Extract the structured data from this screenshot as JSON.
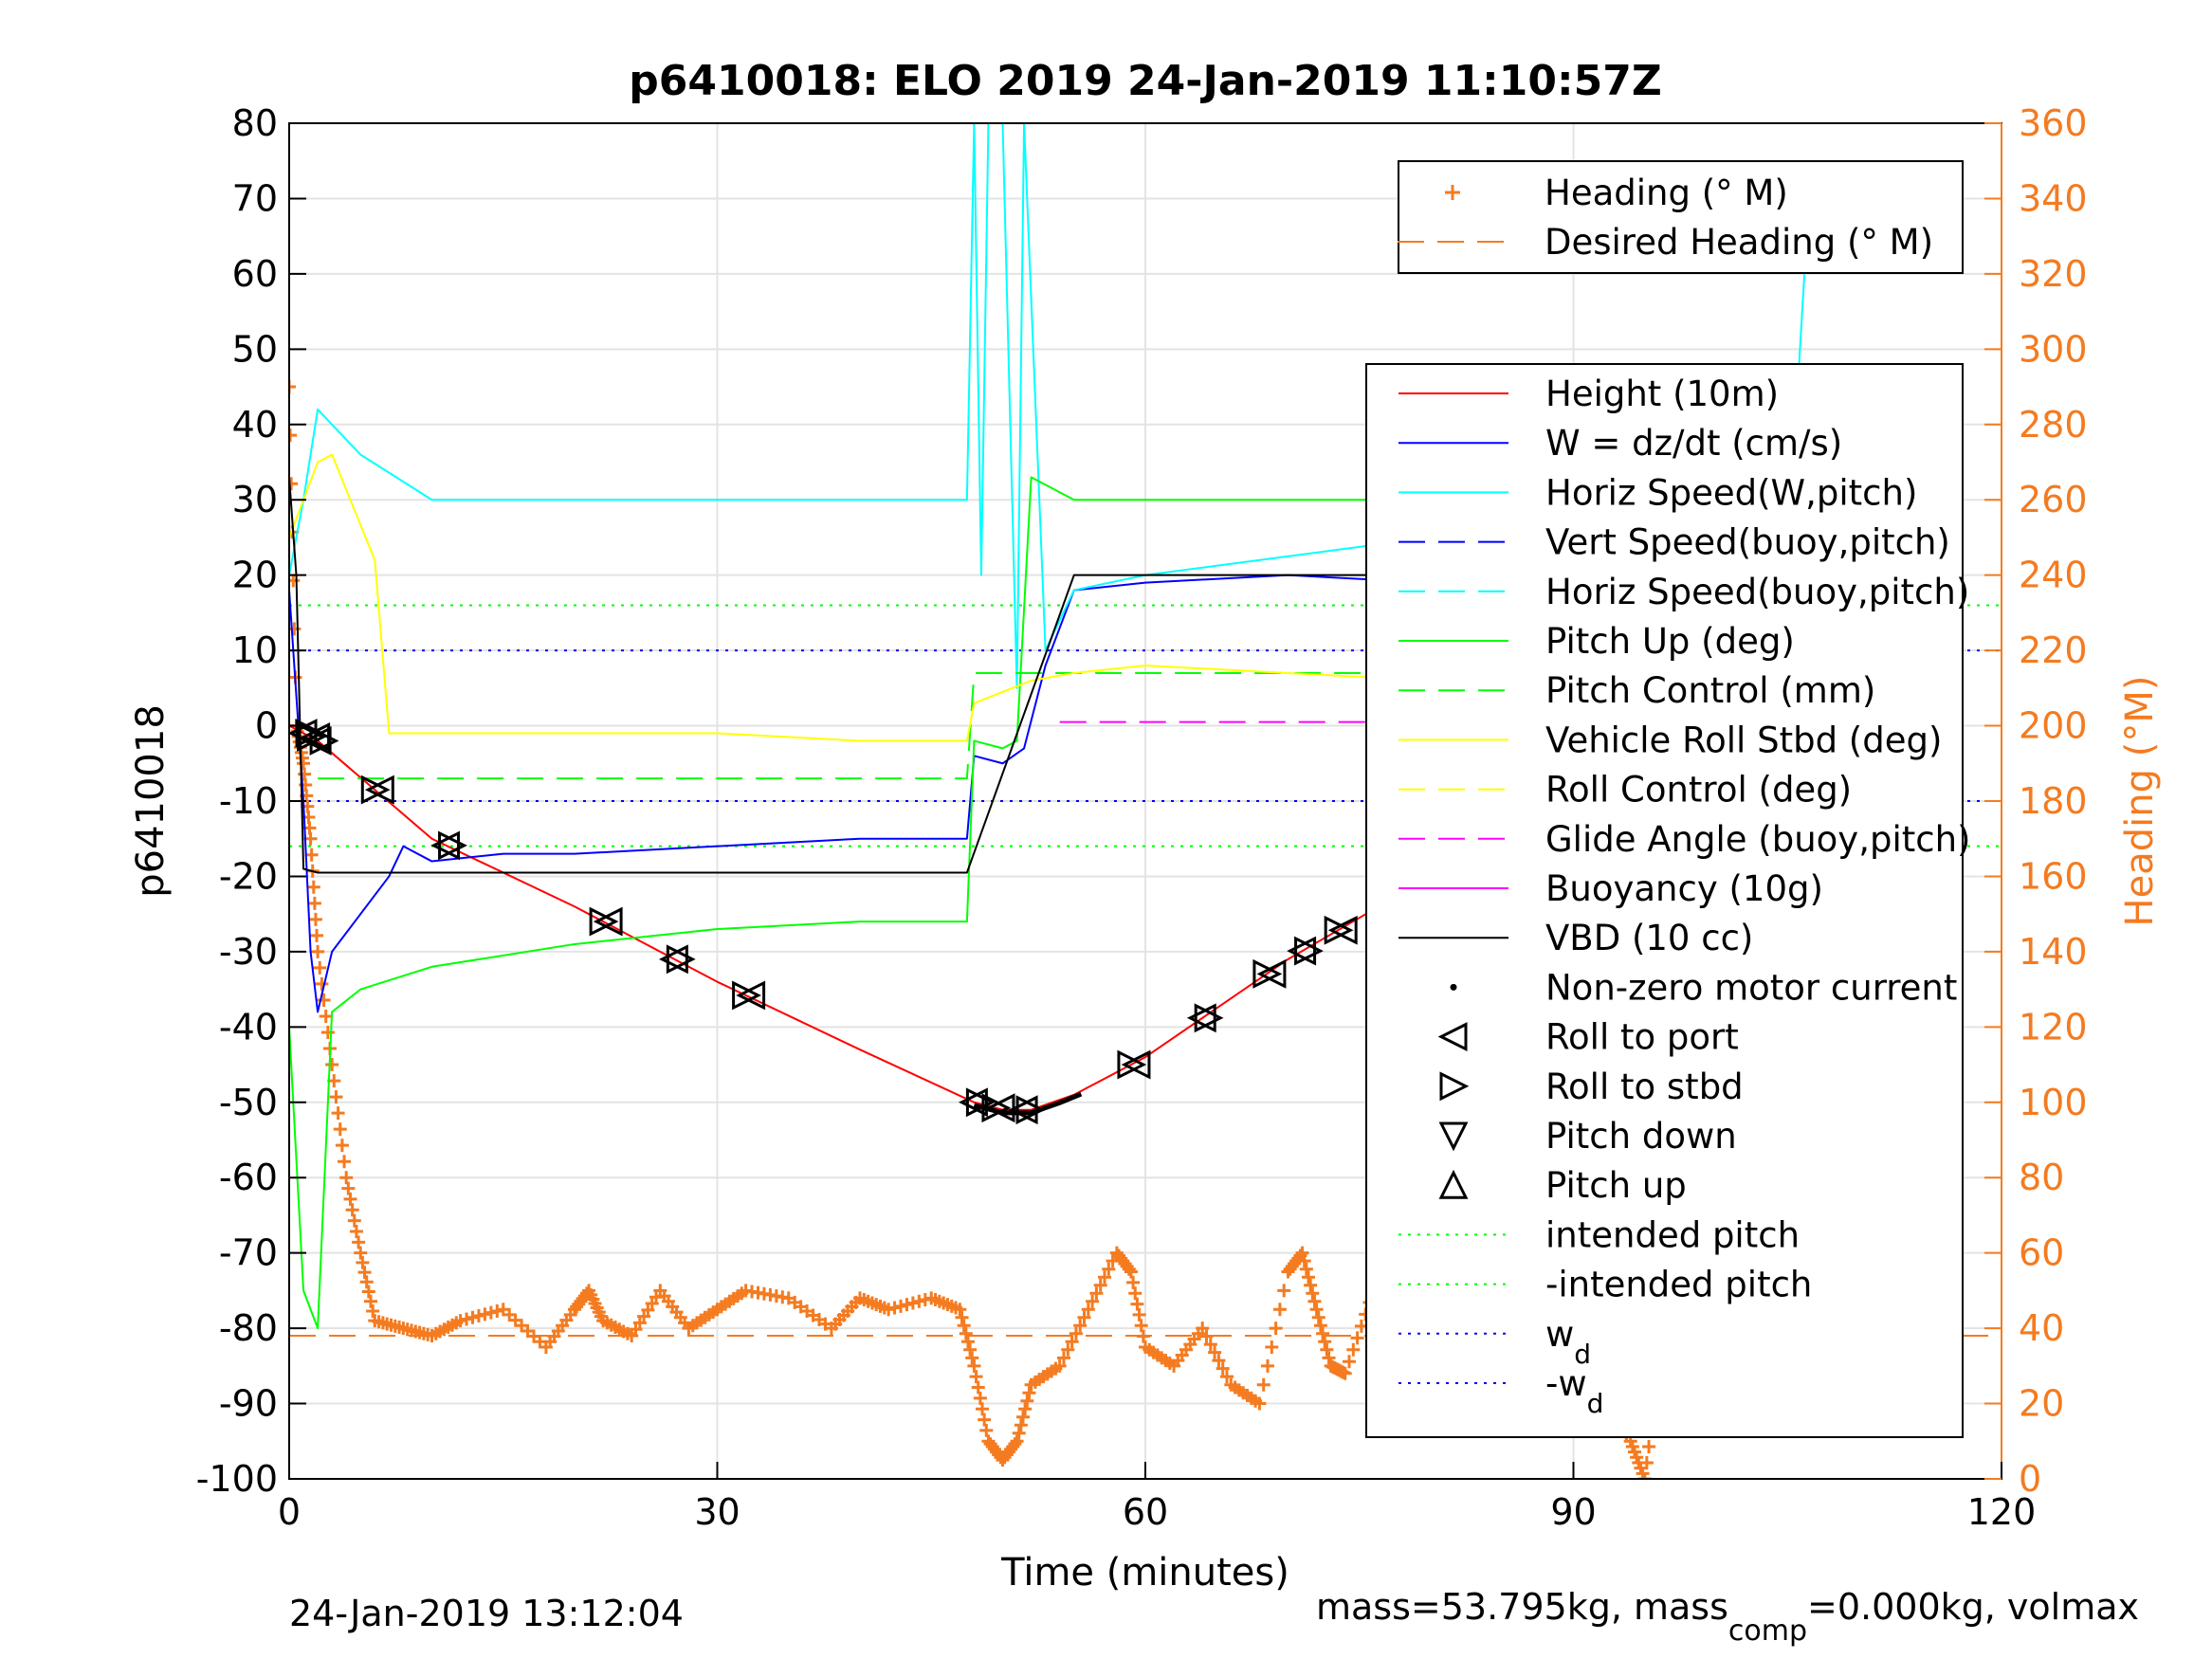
{
  "chart_data": {
    "type": "line",
    "title": "p6410018: ELO 2019 24-Jan-2019 11:10:57Z",
    "xlabel": "Time (minutes)",
    "ylabel": "p6410018",
    "y2label": "Heading (°M)",
    "xlim": [
      0,
      120
    ],
    "ylim": [
      -100,
      80
    ],
    "y2lim": [
      0,
      360
    ],
    "xticks": [
      0,
      30,
      60,
      90,
      120
    ],
    "yticks": [
      -100,
      -90,
      -80,
      -70,
      -60,
      -50,
      -40,
      -30,
      -20,
      -10,
      0,
      10,
      20,
      30,
      40,
      50,
      60,
      70,
      80
    ],
    "y2ticks": [
      0,
      20,
      40,
      60,
      80,
      100,
      120,
      140,
      160,
      180,
      200,
      220,
      240,
      260,
      280,
      300,
      320,
      340,
      360
    ],
    "grid": true,
    "footer_left": "24-Jan-2019 13:12:04",
    "footer_right": "mass=53.795kg, mass",
    "footer_right_sub": "comp",
    "footer_right_tail": "=0.000kg, volmax",
    "legend_heading": [
      {
        "label": "Heading (° M)",
        "color": "#f47b20",
        "style": "plus"
      },
      {
        "label": "Desired Heading (° M)",
        "color": "#f47b20",
        "style": "dash"
      }
    ],
    "legend_main": [
      {
        "label": "Height (10m)",
        "color": "#ff0000",
        "style": "solid"
      },
      {
        "label": "W = dz/dt (cm/s)",
        "color": "#0000ff",
        "style": "solid"
      },
      {
        "label": "Horiz Speed(W,pitch)",
        "color": "#00ffff",
        "style": "solid"
      },
      {
        "label": "Vert Speed(buoy,pitch)",
        "color": "#0000ff",
        "style": "dash"
      },
      {
        "label": "Horiz Speed(buoy,pitch)",
        "color": "#00ffff",
        "style": "dash"
      },
      {
        "label": "Pitch Up (deg)",
        "color": "#00ff00",
        "style": "solid"
      },
      {
        "label": "Pitch Control (mm)",
        "color": "#00ff00",
        "style": "dash"
      },
      {
        "label": "Vehicle Roll Stbd (deg)",
        "color": "#ffff00",
        "style": "solid"
      },
      {
        "label": "Roll Control (deg)",
        "color": "#ffff00",
        "style": "dash"
      },
      {
        "label": "Glide Angle (buoy,pitch)",
        "color": "#ff00ff",
        "style": "dash"
      },
      {
        "label": "Buoyancy (10g)",
        "color": "#ff00ff",
        "style": "solid"
      },
      {
        "label": "VBD (10 cc)",
        "color": "#000000",
        "style": "solid"
      },
      {
        "label": "Non-zero motor current",
        "color": "#000000",
        "style": "dot"
      },
      {
        "label": "Roll to port",
        "color": "#000000",
        "style": "tri-left"
      },
      {
        "label": "Roll to stbd",
        "color": "#000000",
        "style": "tri-right"
      },
      {
        "label": "Pitch down",
        "color": "#000000",
        "style": "tri-down"
      },
      {
        "label": "Pitch up",
        "color": "#000000",
        "style": "tri-up"
      },
      {
        "label": "intended pitch",
        "color": "#00ff00",
        "style": "dotted"
      },
      {
        "label": "-intended pitch",
        "color": "#00ff00",
        "style": "dotted"
      },
      {
        "label": "w",
        "sub": "d",
        "color": "#0000ff",
        "style": "dotted"
      },
      {
        "label": "-w",
        "sub": "d",
        "color": "#0000ff",
        "style": "dotted"
      }
    ],
    "reference_lines": [
      {
        "name": "intended pitch",
        "y": 16,
        "color": "#00ff00"
      },
      {
        "name": "-intended pitch",
        "y": -16,
        "color": "#00ff00"
      },
      {
        "name": "w_d",
        "y": 10,
        "color": "#0000ff"
      },
      {
        "name": "-w_d",
        "y": -10,
        "color": "#0000ff"
      },
      {
        "name": "Desired Heading (° M)",
        "y2": 38,
        "color": "#f47b20"
      }
    ],
    "series": [
      {
        "name": "Height (10m)",
        "color": "#ff0000",
        "x": [
          0,
          2,
          10,
          20,
          30,
          40,
          48,
          50,
          52,
          55,
          60,
          70,
          80,
          90,
          100,
          106.5
        ],
        "y": [
          0,
          -2,
          -15,
          -24,
          -34,
          -43,
          -50,
          -51,
          -51,
          -49,
          -44,
          -31,
          -20,
          -11,
          -3,
          0
        ]
      },
      {
        "name": "W = dz/dt (cm/s)",
        "color": "#0000ff",
        "x": [
          0,
          1,
          1.5,
          2,
          3,
          5,
          7,
          8,
          10,
          15,
          20,
          30,
          40,
          47.5,
          48,
          50,
          51.5,
          53,
          55,
          60,
          70,
          80,
          83,
          88,
          95,
          97,
          100,
          106.5
        ],
        "y": [
          18,
          -10,
          -30,
          -38,
          -30,
          -25,
          -20,
          -16,
          -18,
          -17,
          -17,
          -16,
          -15,
          -15,
          -4,
          -5,
          -3,
          8,
          18,
          19,
          20,
          19,
          17,
          14,
          12,
          10,
          10,
          12
        ]
      },
      {
        "name": "Horiz Speed(W,pitch)",
        "color": "#00ffff",
        "x": [
          0,
          1,
          2,
          3,
          5,
          10,
          20,
          30,
          40,
          47.5,
          48,
          48.5,
          49,
          50,
          51,
          51.5,
          53,
          55,
          60,
          80,
          84,
          88,
          90,
          95,
          97,
          100,
          105,
          106.5
        ],
        "y": [
          20,
          30,
          42,
          40,
          36,
          30,
          30,
          30,
          30,
          30,
          80,
          20,
          80,
          80,
          5,
          80,
          10,
          18,
          20,
          25,
          28,
          25,
          20,
          22,
          18,
          20,
          22,
          70
        ]
      },
      {
        "name": "Pitch Up (deg)",
        "color": "#00ff00",
        "x": [
          0,
          1,
          2,
          3,
          5,
          10,
          20,
          30,
          40,
          47.5,
          48,
          50,
          51,
          52,
          55,
          60,
          70,
          80,
          85,
          90,
          100,
          106.5
        ],
        "y": [
          -40,
          -75,
          -80,
          -38,
          -35,
          -32,
          -29,
          -27,
          -26,
          -26,
          -2,
          -3,
          -2,
          33,
          30,
          30,
          30,
          30,
          29,
          28,
          27,
          26
        ]
      },
      {
        "name": "Pitch Control (mm)",
        "color": "#00ff00",
        "x": [
          2,
          47.5,
          48,
          106.5
        ],
        "y": [
          -7,
          -7,
          7,
          7
        ]
      },
      {
        "name": "Vehicle Roll Stbd (deg)",
        "color": "#ffff00",
        "x": [
          0,
          2,
          3,
          6,
          7,
          10,
          20,
          30,
          40,
          47.5,
          48,
          52,
          55,
          60,
          70,
          80,
          90,
          100,
          106.5
        ],
        "y": [
          25,
          35,
          36,
          22,
          -1,
          -1,
          -1,
          -1,
          -2,
          -2,
          3,
          6,
          7,
          8,
          7,
          6,
          7,
          6,
          5
        ]
      },
      {
        "name": "Buoyancy (10g)",
        "color": "#ff00ff",
        "x": [
          54,
          106.5
        ],
        "y": [
          0.5,
          0.5
        ]
      },
      {
        "name": "VBD (10 cc)",
        "color": "#000000",
        "x": [
          0,
          0.5,
          1,
          2,
          3,
          10,
          20,
          30,
          40,
          47.5,
          55,
          60,
          70,
          80,
          92,
          93,
          100,
          101,
          103,
          104,
          106.5
        ],
        "y": [
          33,
          20,
          -19,
          -19.5,
          -19.5,
          -19.5,
          -19.5,
          -19.5,
          -19.5,
          -19.5,
          20,
          20,
          20,
          20,
          20,
          29,
          29,
          37,
          37,
          41,
          41
        ]
      }
    ],
    "heading_series": {
      "name": "Heading (° M)",
      "color": "#f47b20",
      "x": [
        0,
        0.5,
        1,
        1.5,
        2,
        3,
        4,
        5,
        6,
        8,
        10,
        12,
        15,
        18,
        20,
        21,
        22,
        24,
        26,
        28,
        30,
        32,
        35,
        38,
        40,
        42,
        45,
        47,
        48,
        49,
        50,
        51,
        52,
        54,
        56,
        58,
        59,
        60,
        62,
        64,
        66,
        68,
        70,
        71,
        72,
        73,
        74,
        76,
        78,
        80,
        81,
        82,
        84,
        86,
        88,
        90,
        92,
        94,
        95,
        96,
        97,
        98,
        99,
        100,
        101,
        102,
        103,
        104,
        105,
        106
      ],
      "y": [
        290,
        200,
        190,
        170,
        140,
        110,
        80,
        60,
        42,
        40,
        38,
        42,
        45,
        35,
        45,
        50,
        42,
        38,
        50,
        40,
        45,
        50,
        48,
        40,
        48,
        45,
        48,
        45,
        30,
        10,
        5,
        10,
        25,
        30,
        45,
        60,
        55,
        35,
        30,
        40,
        25,
        20,
        55,
        60,
        45,
        30,
        28,
        50,
        40,
        60,
        45,
        30,
        45,
        30,
        40,
        35,
        20,
        10,
        0,
        30,
        45,
        25,
        15,
        35,
        120,
        80,
        40,
        30,
        45,
        35
      ]
    }
  }
}
